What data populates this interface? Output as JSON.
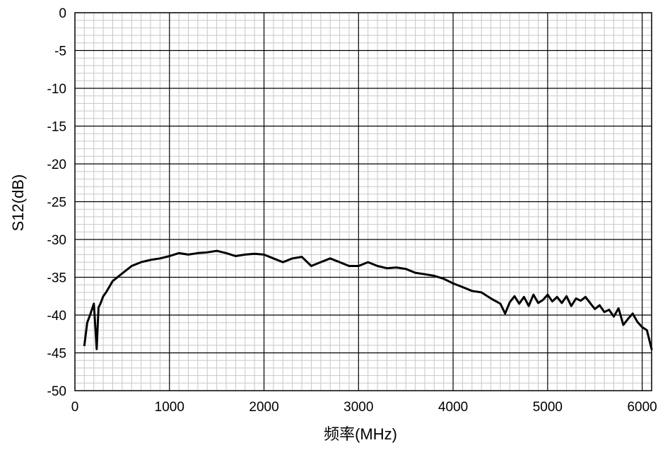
{
  "chart_data": {
    "type": "line",
    "title": "",
    "xlabel": "频率(MHz)",
    "ylabel": "S12(dB)",
    "xlim": [
      0,
      6100
    ],
    "ylim": [
      -50,
      0
    ],
    "x_ticks": [
      0,
      1000,
      2000,
      3000,
      4000,
      5000,
      6000
    ],
    "y_ticks": [
      0,
      -5,
      -10,
      -15,
      -20,
      -25,
      -30,
      -35,
      -40,
      -45,
      -50
    ],
    "x_tick_labels": [
      "0",
      "1000",
      "2000",
      "3000",
      "4000",
      "5000",
      "6000"
    ],
    "y_tick_labels": [
      "0",
      "-5",
      "-10",
      "-15",
      "-20",
      "-25",
      "-30",
      "-35",
      "-40",
      "-45",
      "-50"
    ],
    "grid": true,
    "legend": "none",
    "line_color": "#000000",
    "series": [
      {
        "x": [
          100,
          130,
          160,
          200,
          230,
          250,
          270,
          300,
          330,
          400,
          500,
          600,
          700,
          800,
          900,
          1000,
          1100,
          1200,
          1300,
          1400,
          1500,
          1600,
          1700,
          1800,
          1900,
          2000,
          2100,
          2200,
          2300,
          2400,
          2500,
          2600,
          2700,
          2800,
          2900,
          3000,
          3100,
          3200,
          3300,
          3400,
          3500,
          3600,
          3700,
          3800,
          3900,
          4000,
          4100,
          4200,
          4300,
          4400,
          4500,
          4550,
          4600,
          4650,
          4700,
          4750,
          4800,
          4850,
          4900,
          4950,
          5000,
          5050,
          5100,
          5150,
          5200,
          5250,
          5300,
          5350,
          5400,
          5450,
          5500,
          5550,
          5600,
          5650,
          5700,
          5750,
          5800,
          5850,
          5900,
          5950,
          6000,
          6050,
          6100
        ],
        "y": [
          -44,
          -41,
          -40,
          -38.5,
          -44.5,
          -39,
          -38.5,
          -37.5,
          -37,
          -35.5,
          -34.5,
          -33.5,
          -33,
          -32.7,
          -32.5,
          -32.2,
          -31.8,
          -32,
          -31.8,
          -31.7,
          -31.5,
          -31.8,
          -32.2,
          -32,
          -31.9,
          -32,
          -32.5,
          -33,
          -32.5,
          -32.3,
          -33.5,
          -33,
          -32.5,
          -33,
          -33.5,
          -33.5,
          -33,
          -33.5,
          -33.8,
          -33.7,
          -33.9,
          -34.4,
          -34.6,
          -34.8,
          -35.2,
          -35.8,
          -36.3,
          -36.8,
          -37,
          -37.8,
          -38.5,
          -39.8,
          -38.3,
          -37.5,
          -38.5,
          -37.6,
          -38.8,
          -37.3,
          -38.4,
          -38,
          -37.3,
          -38.2,
          -37.6,
          -38.4,
          -37.5,
          -38.8,
          -37.8,
          -38.1,
          -37.6,
          -38.4,
          -39.2,
          -38.7,
          -39.6,
          -39.3,
          -40.2,
          -39.1,
          -41.3,
          -40.5,
          -39.8,
          -40.9,
          -41.6,
          -42,
          -44.5
        ]
      }
    ]
  }
}
